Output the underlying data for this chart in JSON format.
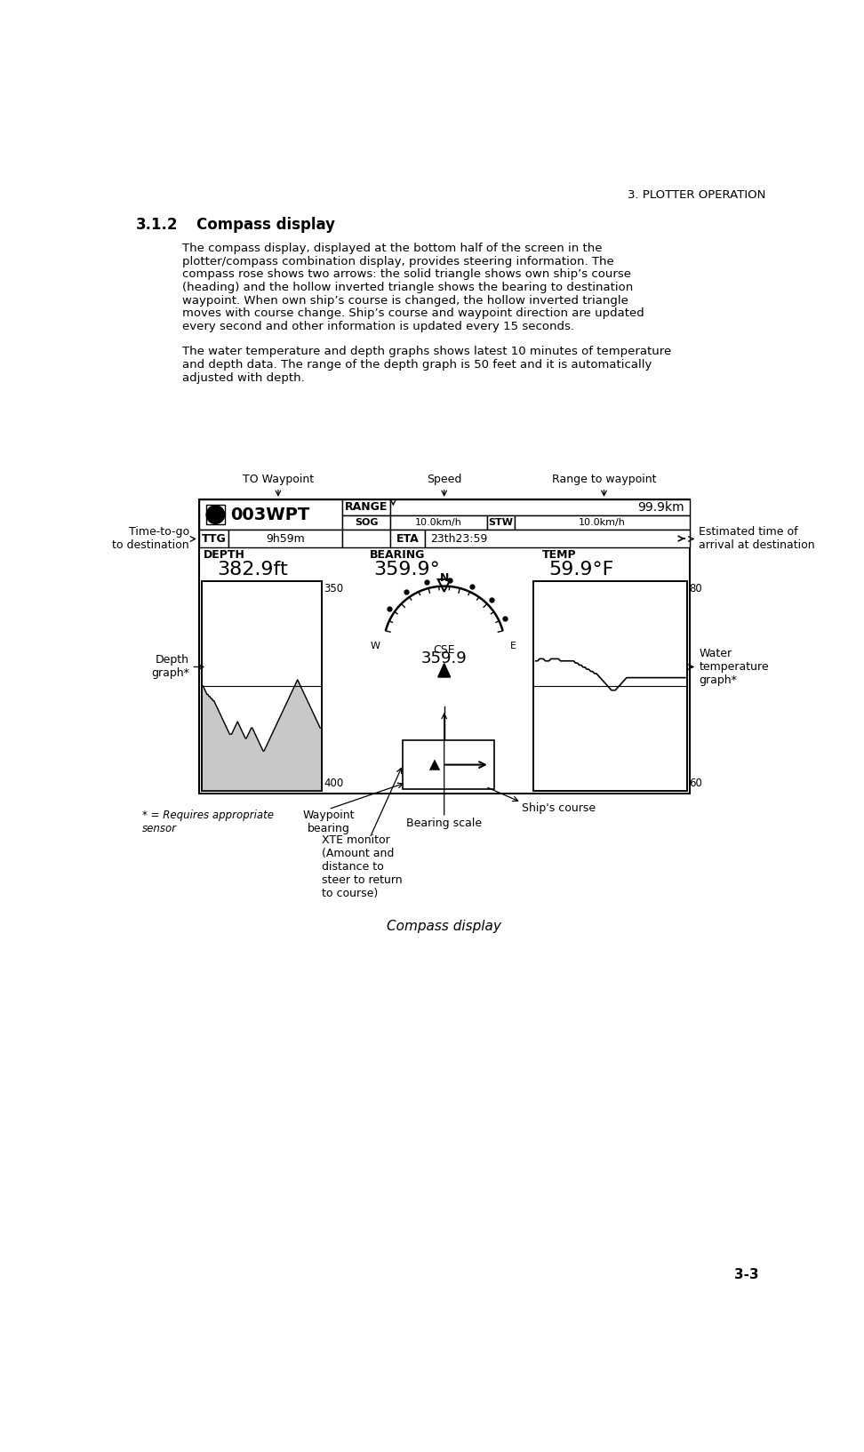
{
  "page_header": "3. PLOTTER OPERATION",
  "section_number": "3.1.2",
  "section_title": "Compass display",
  "para1": [
    "The compass display, displayed at the bottom half of the screen in the",
    "plotter/compass combination display, provides steering information. The",
    "compass rose shows two arrows: the solid triangle shows own ship’s course",
    "(heading) and the hollow inverted triangle shows the bearing to destination",
    "waypoint. When own ship’s course is changed, the hollow inverted triangle",
    "moves with course change. Ship’s course and waypoint direction are updated",
    "every second and other information is updated every 15 seconds."
  ],
  "para2": [
    "The water temperature and depth graphs shows latest 10 minutes of temperature",
    "and depth data. The range of the depth graph is 50 feet and it is automatically",
    "adjusted with depth."
  ],
  "wpt_id": "003WPT",
  "range_label": "RANGE",
  "range_value": "99.9km",
  "sog_label": "SOG",
  "sog_value": "10.0km/h",
  "stw_label": "STW",
  "stw_value": "10.0km/h",
  "ttg_label": "TTG",
  "ttg_value": "9h59m",
  "eta_label": "ETA",
  "eta_value": "23th23:59",
  "depth_label": "DEPTH",
  "depth_value": "382.9ft",
  "bearing_label": "BEARING",
  "bearing_value": "359.9°",
  "temp_label": "TEMP",
  "temp_value": "59.9°F",
  "cse_label": "CSE",
  "cse_value": "359.9",
  "depth_scale_top": "350",
  "depth_scale_bot": "400",
  "temp_scale_top": "80",
  "temp_scale_bot": "60",
  "ann_to_waypoint": "TO Waypoint",
  "ann_speed": "Speed",
  "ann_range": "Range to waypoint",
  "ann_ttg": "Time-to-go\nto destination",
  "ann_eta": "Estimated time of\narrival at destination",
  "ann_depth": "Depth\ngraph*",
  "ann_water": "Water\ntemperature\ngraph*",
  "ann_wpt_bearing": "Waypoint\nbearing",
  "ann_ships_course": "Ship's course",
  "ann_bearing_scale": "Bearing scale",
  "ann_xte": "XTE monitor\n(Amount and\ndistance to\nsteer to return\nto course)",
  "ann_sensor": "* = Requires appropriate\nsensor",
  "caption": "Compass display",
  "page_number": "3-3",
  "depth_fill": "#c8c8c8"
}
